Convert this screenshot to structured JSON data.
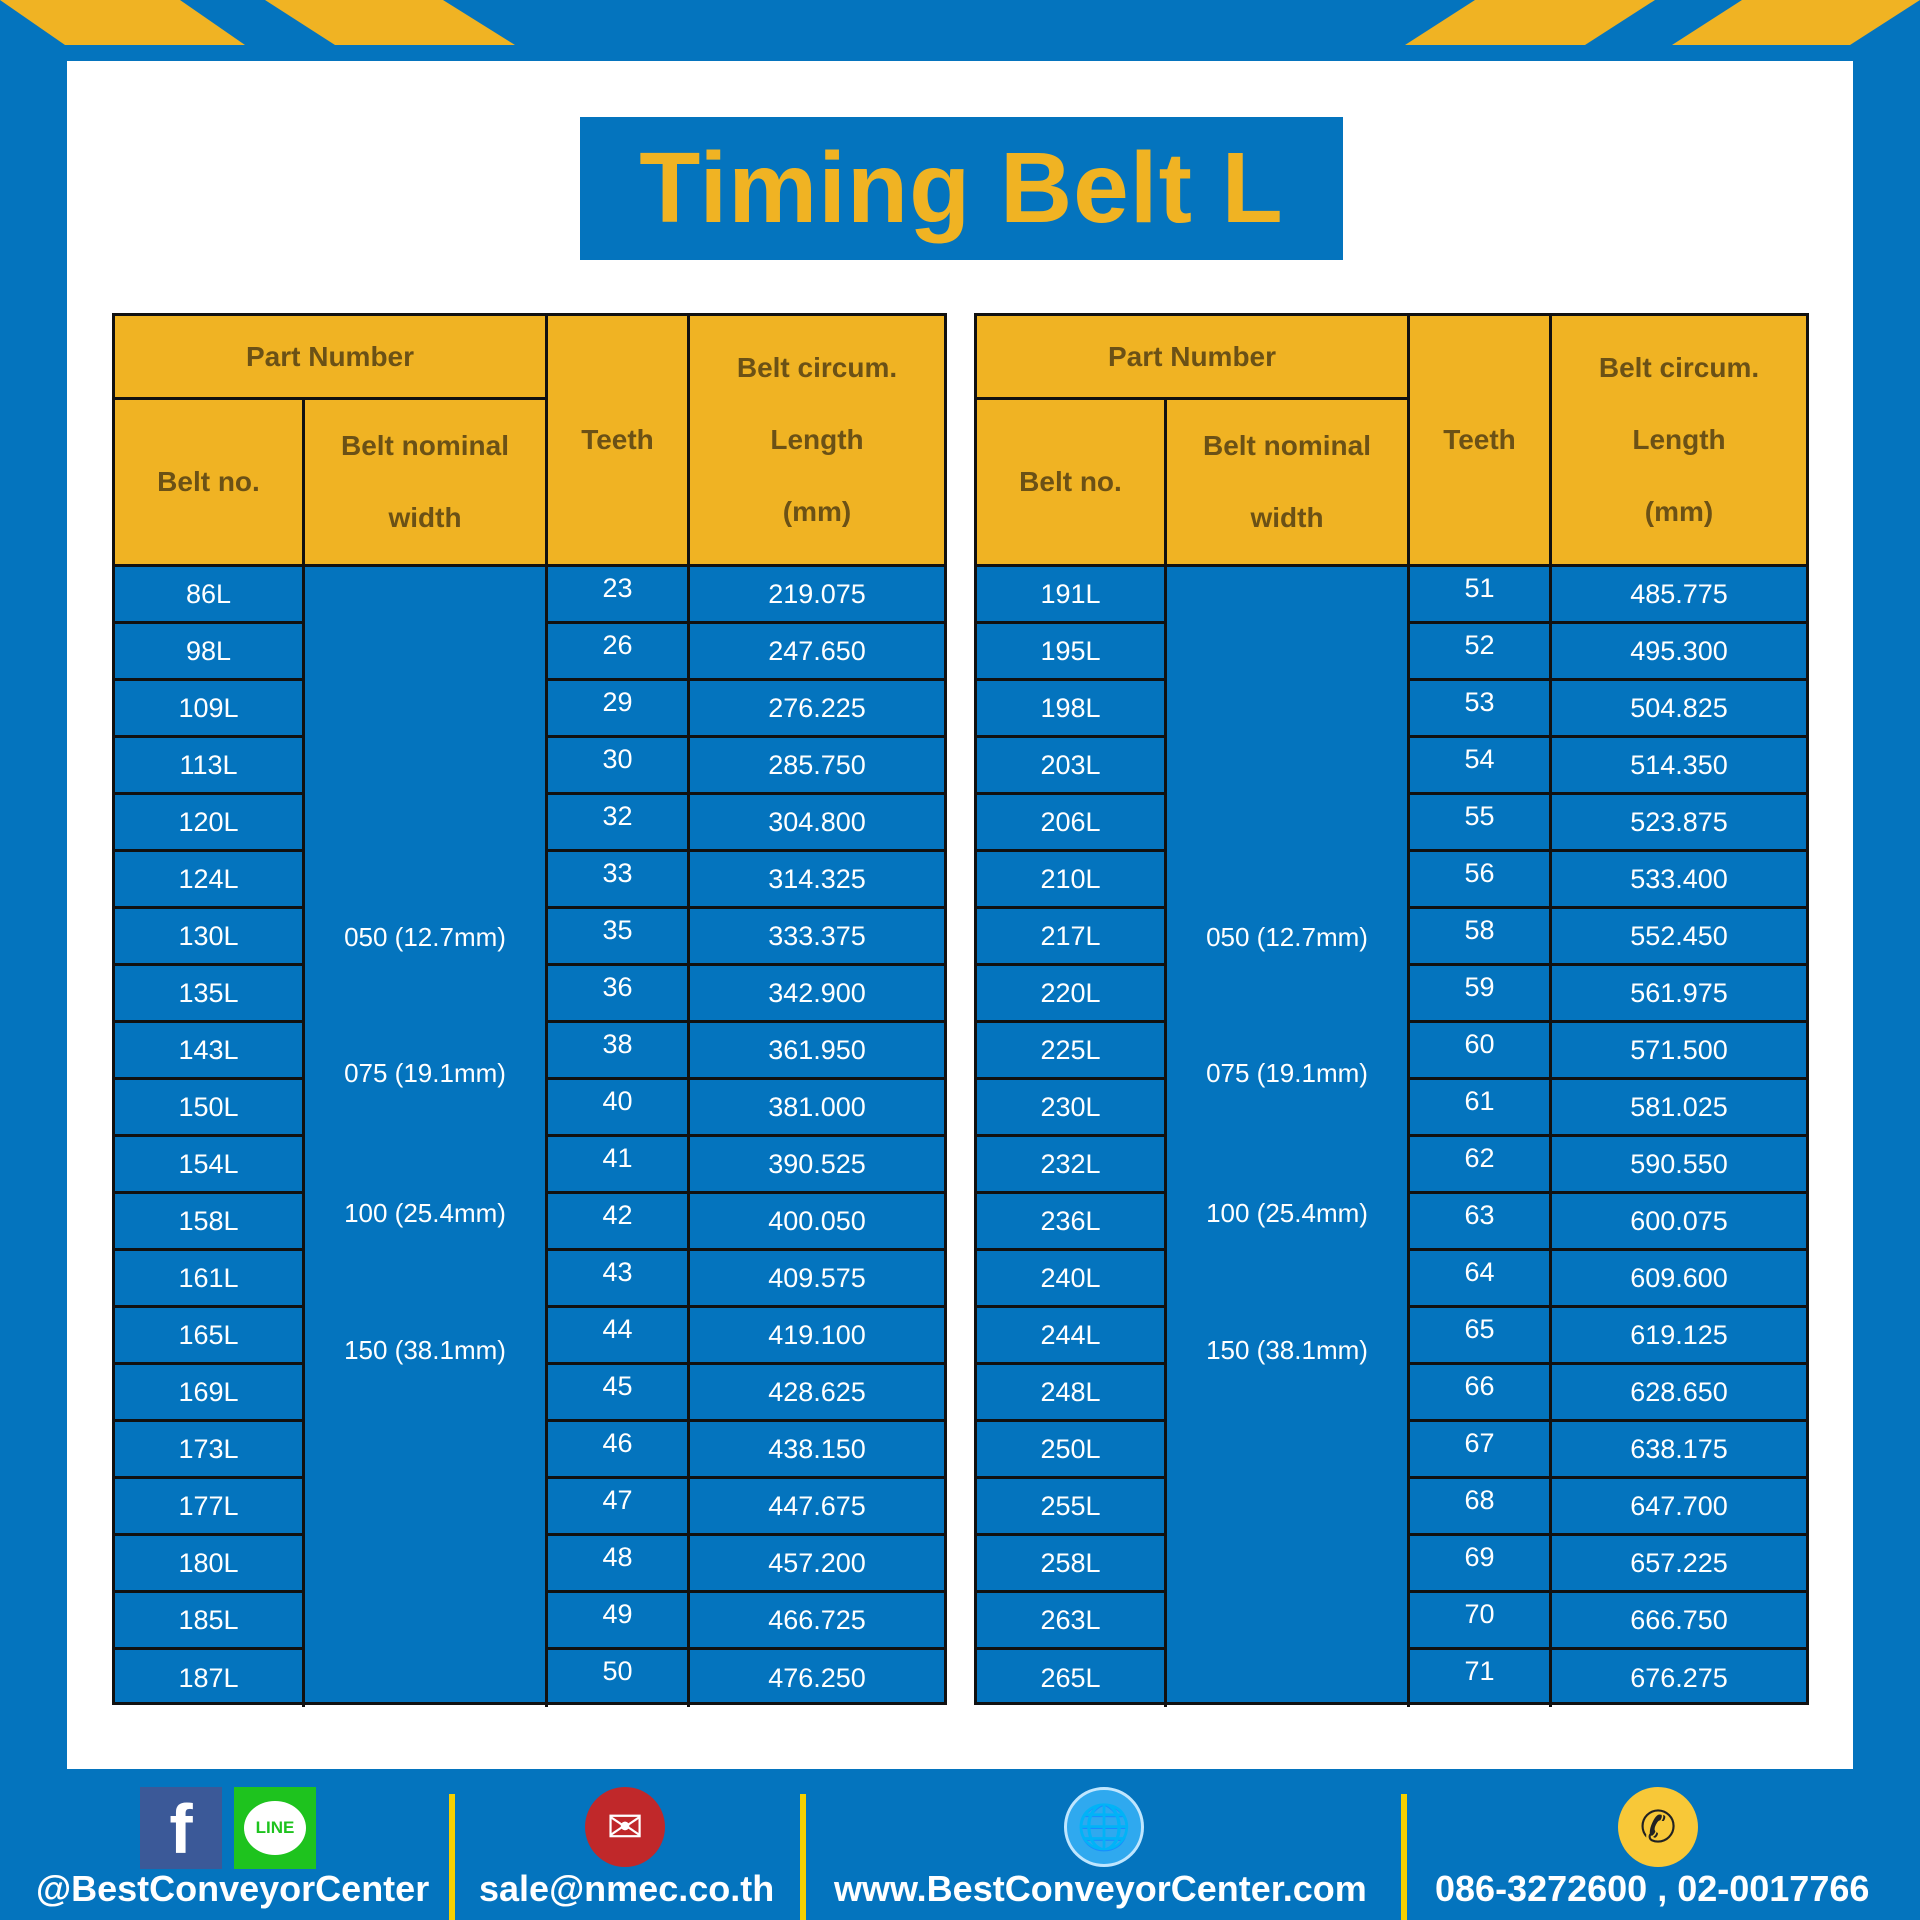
{
  "title": "Timing Belt L",
  "colors": {
    "blue": "#0474be",
    "yellow": "#f0b323",
    "border": "#111111"
  },
  "headers": {
    "part_number": "Part Number",
    "belt_no": "Belt no.",
    "width_1": "Belt nominal",
    "width_2": "width",
    "teeth": "Teeth",
    "len_1": "Belt circum.",
    "len_2": "Length",
    "len_3": "(mm)"
  },
  "widths": [
    "050 (12.7mm)",
    "075 (19.1mm)",
    "100 (25.4mm)",
    "150 (38.1mm)"
  ],
  "tables": [
    {
      "rows": [
        [
          "86L",
          "23",
          "219.075"
        ],
        [
          "98L",
          "26",
          "247.650"
        ],
        [
          "109L",
          "29",
          "276.225"
        ],
        [
          "113L",
          "30",
          "285.750"
        ],
        [
          "120L",
          "32",
          "304.800"
        ],
        [
          "124L",
          "33",
          "314.325"
        ],
        [
          "130L",
          "35",
          "333.375"
        ],
        [
          "135L",
          "36",
          "342.900"
        ],
        [
          "143L",
          "38",
          "361.950"
        ],
        [
          "150L",
          "40",
          "381.000"
        ],
        [
          "154L",
          "41",
          "390.525"
        ],
        [
          "158L",
          "42",
          "400.050"
        ],
        [
          "161L",
          "43",
          "409.575"
        ],
        [
          "165L",
          "44",
          "419.100"
        ],
        [
          "169L",
          "45",
          "428.625"
        ],
        [
          "173L",
          "46",
          "438.150"
        ],
        [
          "177L",
          "47",
          "447.675"
        ],
        [
          "180L",
          "48",
          "457.200"
        ],
        [
          "185L",
          "49",
          "466.725"
        ],
        [
          "187L",
          "50",
          "476.250"
        ]
      ]
    },
    {
      "rows": [
        [
          "191L",
          "51",
          "485.775"
        ],
        [
          "195L",
          "52",
          "495.300"
        ],
        [
          "198L",
          "53",
          "504.825"
        ],
        [
          "203L",
          "54",
          "514.350"
        ],
        [
          "206L",
          "55",
          "523.875"
        ],
        [
          "210L",
          "56",
          "533.400"
        ],
        [
          "217L",
          "58",
          "552.450"
        ],
        [
          "220L",
          "59",
          "561.975"
        ],
        [
          "225L",
          "60",
          "571.500"
        ],
        [
          "230L",
          "61",
          "581.025"
        ],
        [
          "232L",
          "62",
          "590.550"
        ],
        [
          "236L",
          "63",
          "600.075"
        ],
        [
          "240L",
          "64",
          "609.600"
        ],
        [
          "244L",
          "65",
          "619.125"
        ],
        [
          "248L",
          "66",
          "628.650"
        ],
        [
          "250L",
          "67",
          "638.175"
        ],
        [
          "255L",
          "68",
          "647.700"
        ],
        [
          "258L",
          "69",
          "657.225"
        ],
        [
          "263L",
          "70",
          "666.750"
        ],
        [
          "265L",
          "71",
          "676.275"
        ]
      ]
    }
  ],
  "footer": {
    "social": "@BestConveyorCenter",
    "email": "sale@nmec.co.th",
    "website": "www.BestConveyorCenter.com",
    "phone": "086-3272600 , 02-0017766",
    "line_label": "LINE",
    "fb_label": "f"
  }
}
